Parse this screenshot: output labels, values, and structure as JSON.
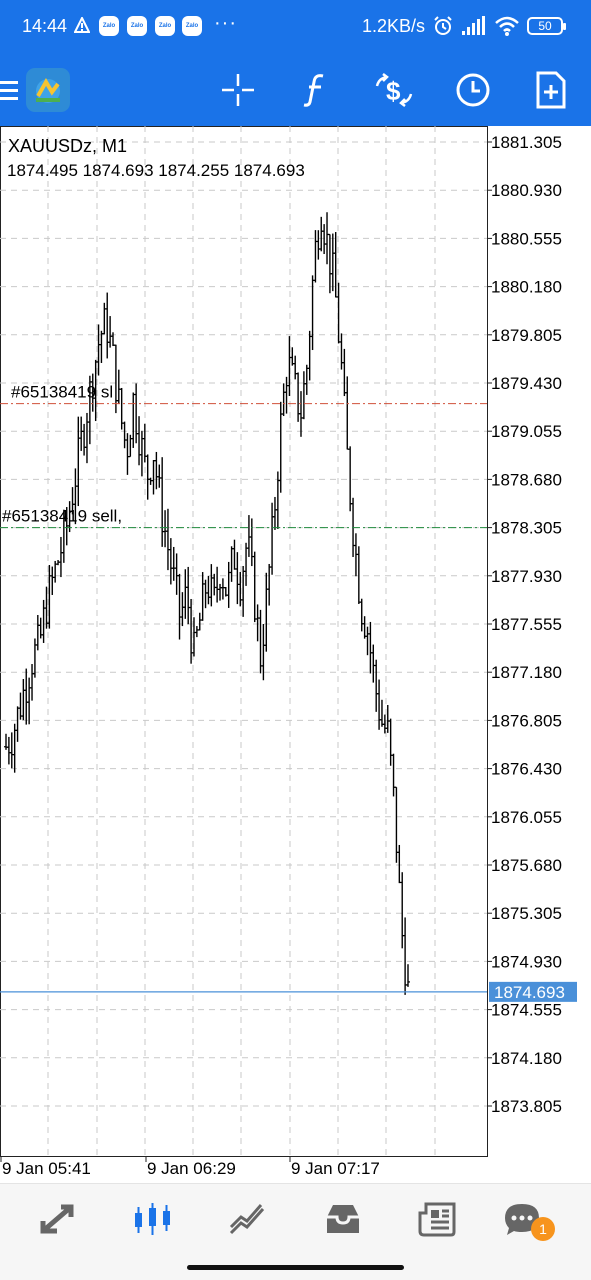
{
  "status_bar": {
    "time": "14:44",
    "notification_icons": [
      "warning-icon",
      "zalo-icon",
      "zalo-icon",
      "zalo-icon",
      "zalo-icon"
    ],
    "zalo_label": "Zalo",
    "more": "···",
    "net_speed": "1.2KB/s",
    "battery": "50"
  },
  "toolbar": {
    "icons": [
      "menu-icon",
      "app-logo",
      "crosshair-icon",
      "indicators-icon",
      "symbol-change-icon",
      "timeframe-icon",
      "new-order-icon"
    ]
  },
  "chart": {
    "symbol_title": "XAUUSDz, M1",
    "ohlc": "1874.495 1874.693 1874.255 1874.693",
    "current_price": "1874.693",
    "order_lines": [
      {
        "label": "#65138419 sl",
        "price": 1879.27,
        "color": "#d0503a"
      },
      {
        "label": "#65138419 sell,",
        "price": 1878.305,
        "color": "#1f8a3c"
      }
    ]
  },
  "chart_data": {
    "type": "bar",
    "subtype": "ohlc",
    "symbol": "XAUUSDz",
    "timeframe": "M1",
    "price_labels": [
      "1881.305",
      "1880.930",
      "1880.555",
      "1880.180",
      "1879.805",
      "1879.430",
      "1879.055",
      "1878.680",
      "1878.305",
      "1877.930",
      "1877.555",
      "1877.180",
      "1876.805",
      "1876.430",
      "1876.055",
      "1875.680",
      "1875.305",
      "1874.930",
      "1874.555",
      "1874.180",
      "1873.805"
    ],
    "time_labels": [
      "9 Jan 05:41",
      "9 Jan 06:29",
      "9 Jan 07:17"
    ],
    "ylim": [
      1873.6,
      1881.5
    ],
    "grid": true,
    "close_path": [
      1876.6,
      1876.7,
      1876.9,
      1877.1,
      1877.3,
      1877.4,
      1877.7,
      1877.9,
      1878.1,
      1878.3,
      1878.6,
      1878.9,
      1879.2,
      1879.5,
      1879.8,
      1879.9,
      1879.6,
      1879.2,
      1878.9,
      1879.3,
      1879.0,
      1878.7,
      1878.9,
      1878.5,
      1878.2,
      1877.9,
      1877.6,
      1877.8,
      1877.3,
      1877.6,
      1877.9,
      1877.7,
      1878.0,
      1877.8,
      1878.1,
      1877.9,
      1878.2,
      1877.8,
      1877.3,
      1877.8,
      1878.4,
      1879.1,
      1879.6,
      1879.4,
      1879.2,
      1879.6,
      1880.4,
      1880.8,
      1880.5,
      1880.2,
      1879.6,
      1878.8,
      1878.2,
      1877.7,
      1877.5,
      1877.1,
      1876.8,
      1876.7,
      1876.1,
      1875.2,
      1874.7
    ]
  },
  "bottom_nav": {
    "icons": [
      "quotes-icon",
      "chart-icon",
      "trade-icon",
      "history-icon",
      "news-icon",
      "messages-icon"
    ],
    "active_index": 1,
    "messages_badge": "1"
  }
}
